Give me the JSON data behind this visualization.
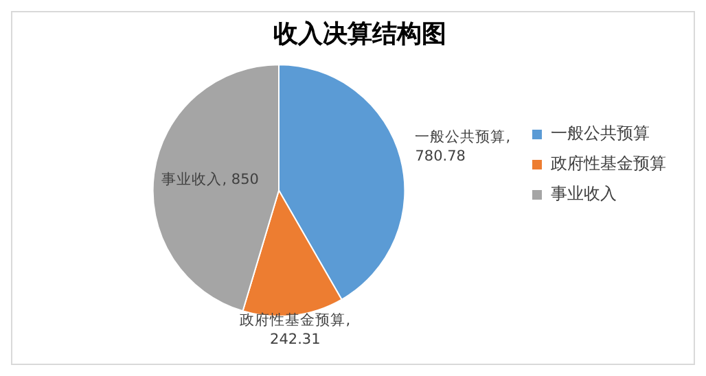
{
  "chart_data": {
    "type": "pie",
    "title": "收入决算结构图",
    "categories": [
      "一般公共预算",
      "政府性基金预算",
      "事业收入"
    ],
    "values": [
      780.78,
      242.31,
      850
    ],
    "colors": [
      "#5b9bd5",
      "#ed7d31",
      "#a5a5a5"
    ],
    "value_labels": [
      "一般公共预算, 780.78",
      "政府性基金预算, 242.31",
      "事业收入, 850"
    ],
    "legend": "right"
  }
}
